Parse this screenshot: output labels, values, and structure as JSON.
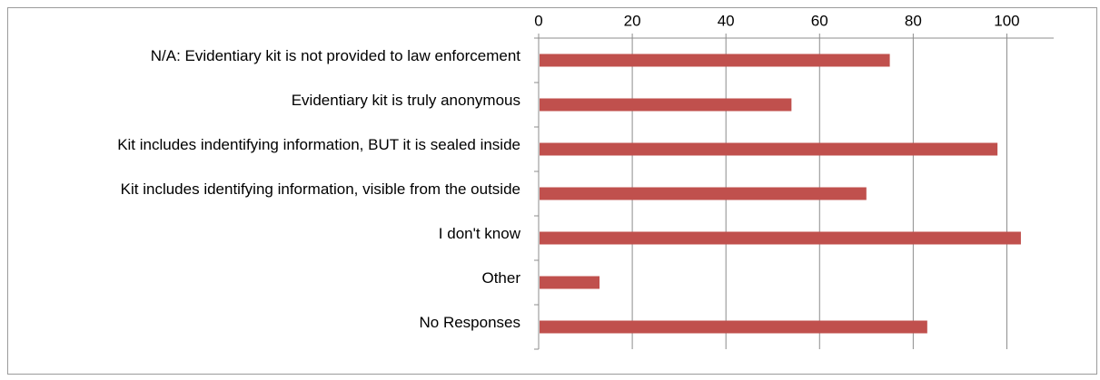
{
  "chart_data": {
    "type": "bar",
    "orientation": "horizontal",
    "categories": [
      "N/A: Evidentiary kit is not provided to law enforcement",
      "Evidentiary kit is truly anonymous",
      "Kit includes indentifying information, BUT it is sealed inside",
      "Kit includes identifying information, visible from the outside",
      "I don't know",
      "Other",
      "No Responses"
    ],
    "values": [
      75,
      54,
      98,
      70,
      103,
      13,
      83
    ],
    "xlim": [
      0,
      110
    ],
    "xticks": [
      "0",
      "20",
      "40",
      "60",
      "80",
      "100"
    ],
    "x_axis_position": "top",
    "grid": true,
    "legend": "none",
    "title": "",
    "xlabel": "",
    "ylabel": "",
    "colors": {
      "bar": "#c0504d",
      "grid": "#8c8c8c",
      "axis": "#8c8c8c",
      "frame": "#9b9b9b"
    }
  }
}
